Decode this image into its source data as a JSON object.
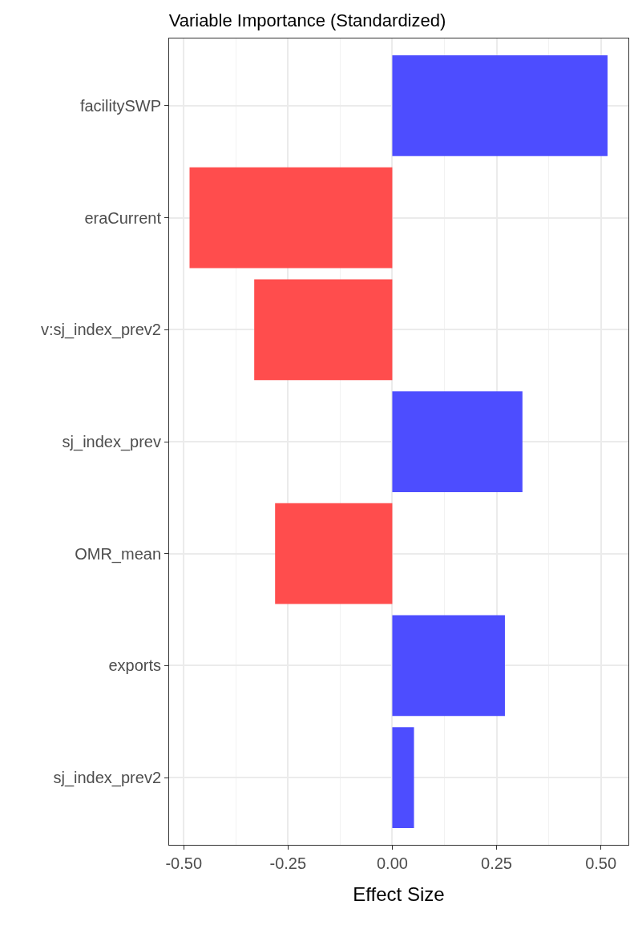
{
  "chart_data": {
    "type": "bar",
    "orientation": "horizontal",
    "title": "Variable Importance (Standardized)",
    "xlabel": "Effect Size",
    "categories": [
      "facilitySWP",
      "eraCurrent",
      "v:sj_index_prev2",
      "sj_index_prev",
      "OMR_mean",
      "exports",
      "sj_index_prev2"
    ],
    "values": [
      0.516,
      -0.486,
      -0.331,
      0.312,
      -0.281,
      0.27,
      0.052
    ],
    "colors": [
      "#4d4dff",
      "#ff4d4d",
      "#ff4d4d",
      "#4d4dff",
      "#ff4d4d",
      "#4d4dff",
      "#4d4dff"
    ],
    "xlim": [
      -0.535,
      0.566
    ],
    "xticks": [
      {
        "value": -0.5,
        "label": "-0.50"
      },
      {
        "value": -0.25,
        "label": "-0.25"
      },
      {
        "value": 0,
        "label": "0.00"
      },
      {
        "value": 0.25,
        "label": "0.25"
      },
      {
        "value": 0.5,
        "label": "0.50"
      }
    ],
    "grid": true
  }
}
